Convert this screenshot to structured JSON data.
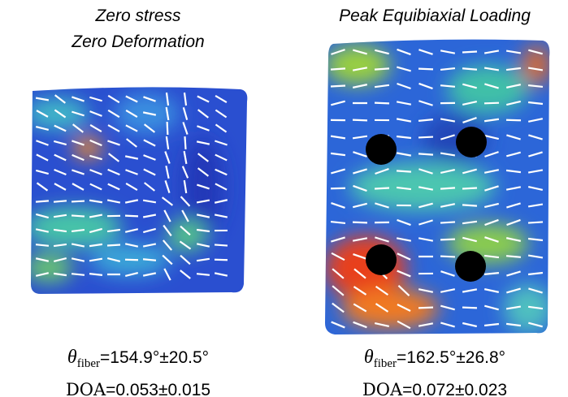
{
  "left": {
    "title_lines": [
      "Zero stress",
      "Zero Deformation"
    ],
    "theta_symbol": "θ",
    "theta_subscript": "fiber",
    "theta_value": "=154.9°±20.5°",
    "doa_label": "DOA",
    "doa_value": "=0.053±0.015"
  },
  "right": {
    "title_lines": [
      "Peak Equibiaxial Loading"
    ],
    "theta_symbol": "θ",
    "theta_subscript": "fiber",
    "theta_value": "=162.5°±26.8°",
    "doa_label": "DOA",
    "doa_value": "=0.072±0.023"
  }
}
